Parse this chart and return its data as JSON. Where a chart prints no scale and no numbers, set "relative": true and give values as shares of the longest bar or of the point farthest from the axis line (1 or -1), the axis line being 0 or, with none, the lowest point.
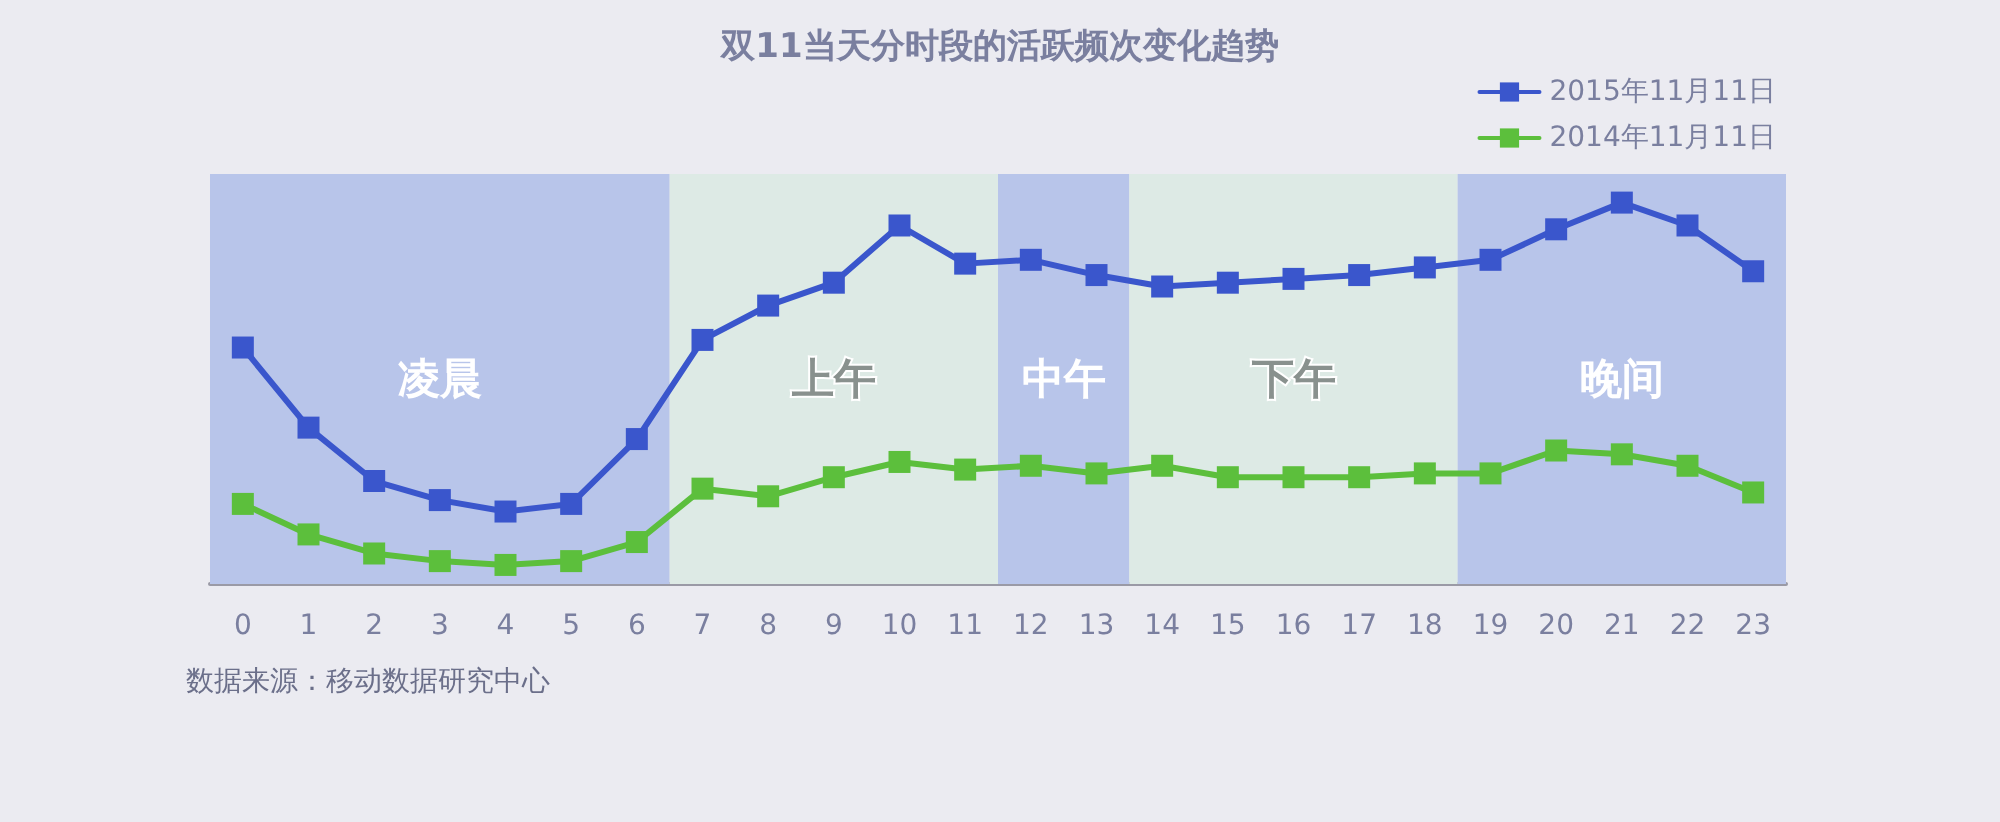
{
  "chart_data": {
    "type": "line",
    "title": "双11当天分时段的活跃频次变化趋势",
    "x": [
      0,
      1,
      2,
      3,
      4,
      5,
      6,
      7,
      8,
      9,
      10,
      11,
      12,
      13,
      14,
      15,
      16,
      17,
      18,
      19,
      20,
      21,
      22,
      23
    ],
    "xlim": [
      -0.5,
      23.5
    ],
    "xticks": [
      0,
      1,
      2,
      3,
      4,
      5,
      6,
      7,
      8,
      9,
      10,
      11,
      12,
      13,
      14,
      15,
      16,
      17,
      18,
      19,
      20,
      21,
      22,
      23
    ],
    "relative": true,
    "series": [
      {
        "name": "2015年11月11日",
        "color": "#3a56cc",
        "values": [
          0.62,
          0.41,
          0.27,
          0.22,
          0.19,
          0.21,
          0.38,
          0.64,
          0.73,
          0.79,
          0.94,
          0.84,
          0.85,
          0.81,
          0.78,
          0.79,
          0.8,
          0.81,
          0.83,
          0.85,
          0.93,
          1,
          0.94,
          0.82
        ]
      },
      {
        "name": "2014年11月11日",
        "color": "#5cbf3c",
        "values": [
          0.21,
          0.13,
          0.08,
          0.06,
          0.05,
          0.06,
          0.11,
          0.25,
          0.23,
          0.28,
          0.32,
          0.3,
          0.31,
          0.29,
          0.31,
          0.28,
          0.28,
          0.28,
          0.29,
          0.29,
          0.35,
          0.34,
          0.31,
          0.24
        ]
      }
    ],
    "bands": [
      {
        "axis": "x",
        "from": -0.5,
        "to": 6.5,
        "label": "凌晨",
        "color": "#b8c5ea"
      },
      {
        "axis": "x",
        "from": 6.5,
        "to": 11.5,
        "label": "上午",
        "color": "#ddeae5"
      },
      {
        "axis": "x",
        "from": 11.5,
        "to": 13.5,
        "label": "中午",
        "color": "#b8c5ea"
      },
      {
        "axis": "x",
        "from": 13.5,
        "to": 18.5,
        "label": "下午",
        "color": "#ddeae5"
      },
      {
        "axis": "x",
        "from": 18.5,
        "to": 23.5,
        "label": "晚间",
        "color": "#b8c5ea"
      }
    ],
    "legend": "top right",
    "marker": "square",
    "line_style": "solid",
    "annotations": [
      "数据来源：移动数据研究中心"
    ]
  }
}
